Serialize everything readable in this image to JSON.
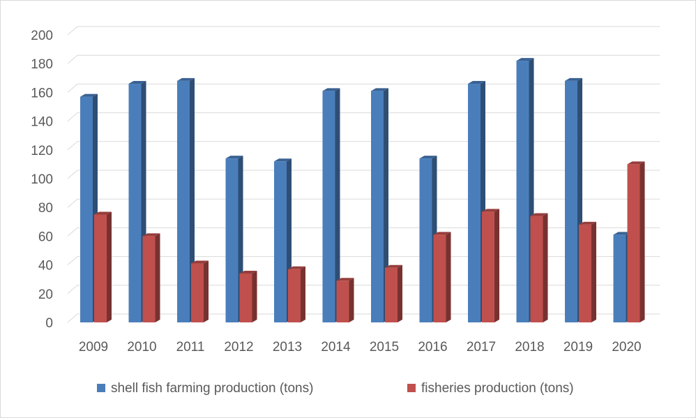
{
  "chart_data": {
    "type": "bar",
    "categories": [
      "2009",
      "2010",
      "2011",
      "2012",
      "2013",
      "2014",
      "2015",
      "2016",
      "2017",
      "2018",
      "2019",
      "2020"
    ],
    "series": [
      {
        "name": "shell fish farming production (tons)",
        "color": "#4a7ebb",
        "values": [
          157,
          166,
          168,
          114,
          112,
          161,
          161,
          114,
          166,
          182,
          168,
          61
        ]
      },
      {
        "name": "fisheries production (tons)",
        "color": "#c0504d",
        "values": [
          75,
          60,
          41,
          34,
          37,
          29,
          38,
          61,
          77,
          74,
          68,
          110
        ]
      }
    ],
    "title": "",
    "xlabel": "",
    "ylabel": "",
    "ylim": [
      0,
      200
    ],
    "yticks": [
      "0",
      "20",
      "40",
      "60",
      "80",
      "100",
      "120",
      "140",
      "160",
      "180",
      "200"
    ],
    "grid": true,
    "legend_position": "bottom",
    "style": "3d-column"
  }
}
